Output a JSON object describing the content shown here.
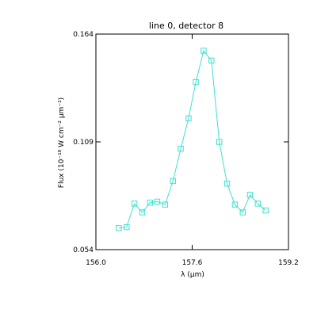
{
  "chart_data": {
    "type": "line",
    "title": "line 0, detector 8",
    "xlabel": "λ (μm)",
    "ylabel": "Flux (10⁻¹⁸ W cm⁻² μm⁻¹)",
    "xlim": [
      156.0,
      159.2
    ],
    "ylim": [
      0.054,
      0.164
    ],
    "xticks": [
      "156.0",
      "157.6",
      "159.2"
    ],
    "yticks": [
      "0.054",
      "0.109",
      "0.164"
    ],
    "grid": false,
    "series": [
      {
        "marker": "square",
        "color": "#40e0d0",
        "x": [
          156.38,
          156.51,
          156.64,
          156.77,
          156.9,
          157.02,
          157.15,
          157.28,
          157.41,
          157.54,
          157.66,
          157.79,
          157.92,
          158.05,
          158.18,
          158.31,
          158.44,
          158.56,
          158.69,
          158.82
        ],
        "y": [
          0.065,
          0.0655,
          0.0775,
          0.073,
          0.078,
          0.0785,
          0.077,
          0.089,
          0.1055,
          0.121,
          0.1395,
          0.1555,
          0.1505,
          0.109,
          0.0877,
          0.077,
          0.073,
          0.082,
          0.0775,
          0.074
        ]
      }
    ]
  }
}
